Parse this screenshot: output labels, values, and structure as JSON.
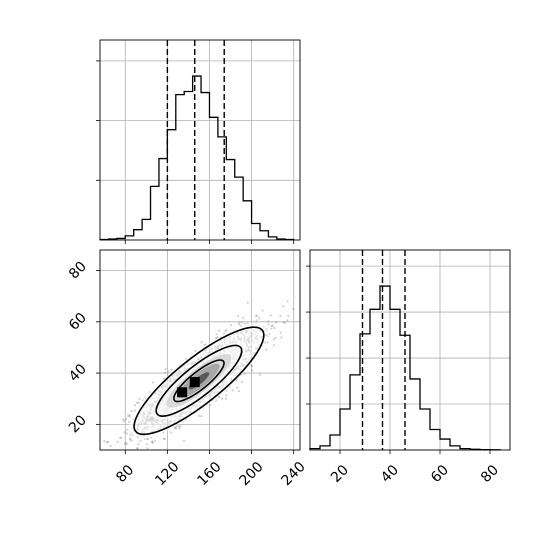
{
  "chart_data": [
    {
      "type": "histogram",
      "panel": "top-left",
      "variable_index": 0,
      "bins": [
        56,
        64,
        72,
        80,
        88,
        96,
        104,
        112,
        120,
        128,
        136,
        144,
        152,
        160,
        168,
        176,
        184,
        192,
        200,
        208,
        216,
        224,
        232,
        240
      ],
      "counts": [
        0.5,
        1,
        1.5,
        4,
        10,
        20,
        52,
        79,
        107,
        141,
        144,
        159,
        143,
        119,
        100,
        78,
        61,
        38,
        16,
        9,
        3,
        1,
        0.5
      ],
      "quantiles": [
        120,
        146,
        174
      ],
      "xlim": [
        56,
        246
      ],
      "grid": true
    },
    {
      "type": "histogram",
      "panel": "bottom-right",
      "variable_index": 1,
      "bins": [
        8,
        12,
        16,
        20,
        24,
        28,
        32,
        36,
        40,
        44,
        48,
        52,
        56,
        60,
        64,
        68,
        72,
        76,
        80,
        84
      ],
      "counts": [
        1,
        3,
        11,
        30,
        55,
        85,
        103,
        120,
        103,
        84,
        52,
        30,
        15,
        8,
        3,
        1,
        0.5,
        0.3,
        0.2
      ],
      "quantiles": [
        29,
        37,
        46
      ],
      "xlim": [
        8,
        88
      ],
      "xticks": [
        "20",
        "40",
        "60",
        "80"
      ],
      "grid": true
    },
    {
      "type": "scatter",
      "panel": "bottom-left",
      "subtype": "2d-density-with-contours",
      "x_variable": 0,
      "y_variable": 1,
      "xlim": [
        56,
        246
      ],
      "ylim": [
        10,
        88
      ],
      "xticks": [
        "80",
        "120",
        "160",
        "200",
        "240"
      ],
      "yticks": [
        "20",
        "40",
        "60",
        "80"
      ],
      "point_cloud": {
        "center": [
          150,
          37
        ],
        "std_x": 28,
        "std_y": 9.5,
        "correlation": 0.85,
        "n": 2500
      },
      "contour_levels": [
        "inner",
        "middle",
        "outer"
      ],
      "grid": true
    }
  ]
}
